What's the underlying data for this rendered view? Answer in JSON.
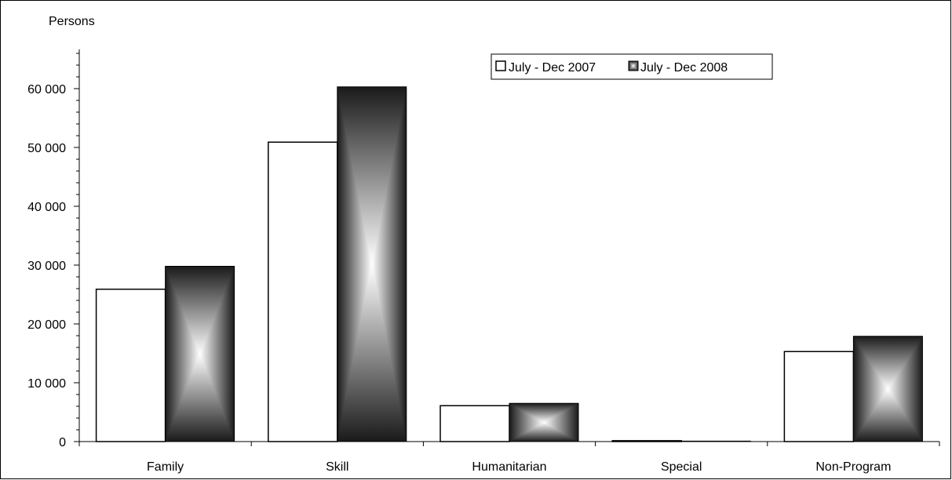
{
  "chart_data": {
    "type": "bar",
    "ylabel": "Persons",
    "categories": [
      "Family",
      "Skill",
      "Humanitarian",
      "Special",
      "Non-Program"
    ],
    "series": [
      {
        "name": "July - Dec 2007",
        "values": [
          25900,
          50900,
          6100,
          150,
          15300
        ]
      },
      {
        "name": "July - Dec 2008",
        "values": [
          29800,
          60300,
          6500,
          80,
          17900
        ]
      }
    ],
    "ylim": [
      0,
      70000
    ],
    "yticks": [
      0,
      10000,
      20000,
      30000,
      40000,
      50000,
      60000
    ],
    "ytick_labels": [
      "0",
      "10 000",
      "20 000",
      "30 000",
      "40 000",
      "50 000",
      "60 000"
    ],
    "minor_tick_step": 2000,
    "grid": false,
    "legend_position": "top-right",
    "colors": {
      "series_2007": "#ffffff",
      "series_2008_dark": "#1a1a1a",
      "series_2008_light": "#ffffff",
      "outline": "#000000"
    }
  }
}
